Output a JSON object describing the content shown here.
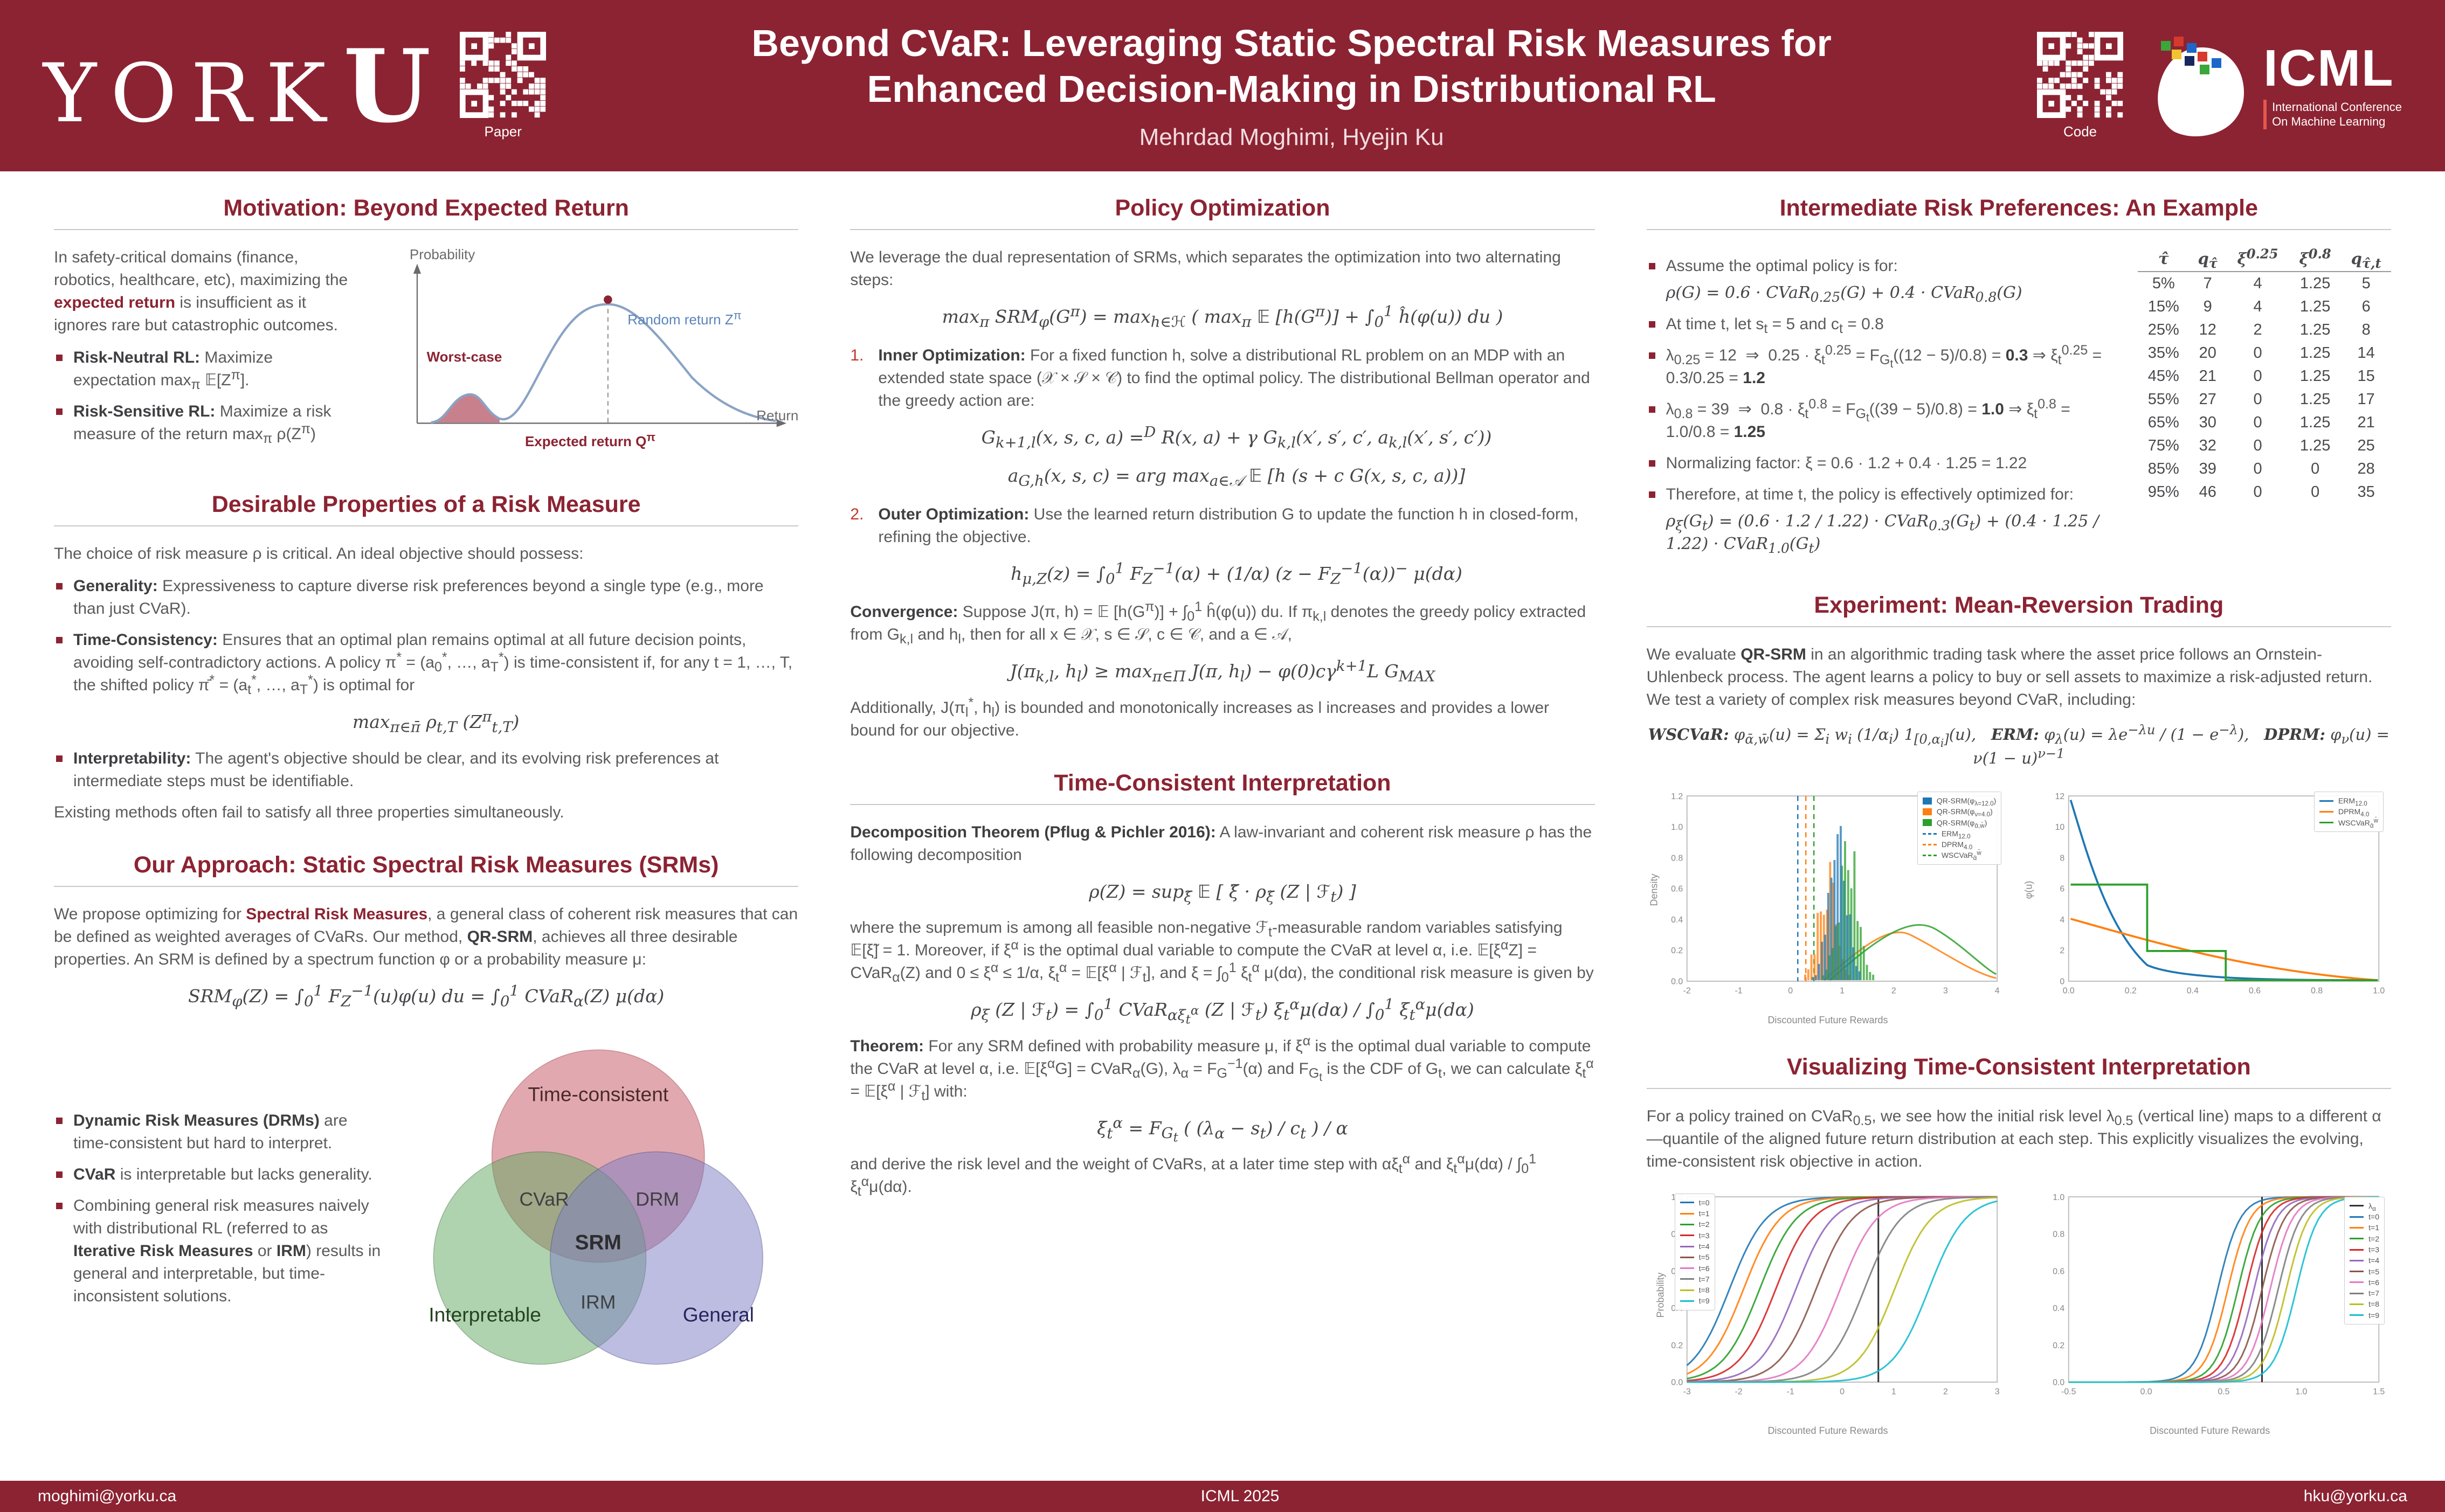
{
  "header": {
    "logo_text": "YORK",
    "logo_u": "U",
    "qr_paper_label": "Paper",
    "qr_code_label": "Code",
    "title_line1": "Beyond CVaR: Leveraging Static Spectral Risk Measures for",
    "title_line2": "Enhanced Decision-Making in Distributional RL",
    "authors": "Mehrdad Moghimi, Hyejin Ku",
    "icml_name": "ICML",
    "icml_sub_html": "International Conference<br>On Machine Learning"
  },
  "footer": {
    "left": "moghimi@yorku.ca",
    "center": "ICML 2025",
    "right": "hku@yorku.ca"
  },
  "motivation": {
    "heading": "Motivation: Beyond Expected Return",
    "intro_html": "In safety-critical domains (finance, robotics, healthcare, etc), maximizing the <span class='hl'>expected return</span> is insufficient as it ignores rare but catastrophic outcomes.",
    "bullets": [
      "<b>Risk-Neutral RL:</b> Maximize expectation max<sub>π</sub> 𝔼[Z<sup>π</sup>].",
      "<b>Risk-Sensitive RL:</b> Maximize a risk measure of the return max<sub>π</sub> ρ(Z<sup>π</sup>)"
    ],
    "figure": {
      "ylabel": "Probability",
      "xlabel": "Return",
      "worst_case": "Worst-case",
      "random_return_html": "Random return Z<sup>π</sup>",
      "expected_return_html": "Expected return Q<sup>π</sup>"
    }
  },
  "properties": {
    "heading": "Desirable Properties of a Risk Measure",
    "intro": "The choice of risk measure ρ is critical. An ideal objective should possess:",
    "bullets": [
      "<b>Generality:</b> Expressiveness to capture diverse risk preferences beyond a single type (e.g., more than just CVaR).",
      "<b>Time-Consistency:</b> Ensures that an optimal plan remains optimal at all future decision points, avoiding self-contradictory actions. A policy π<sup>*</sup> = (a<sub>0</sub><sup>*</sup>, …, a<sub>T</sub><sup>*</sup>) is time-consistent if, for any t = 1, …, T, the shifted policy π̄<sup>*</sup> = (a<sub>t</sub><sup>*</sup>, …, a<sub>T</sub><sup>*</sup>) is optimal for",
      "<b>Interpretability:</b> The agent's objective should be clear, and its evolving risk preferences at intermediate steps must be identifiable."
    ],
    "tc_formula_html": "max<sub>π∈π̄</sub> ρ<sub>t,T</sub> (Z<sup>π</sup><sub>t,T</sub>)",
    "outro": "Existing methods often fail to satisfy all three properties simultaneously."
  },
  "approach": {
    "heading": "Our Approach: Static Spectral Risk Measures (SRMs)",
    "intro_html": "We propose optimizing for <span class='hl'>Spectral Risk Measures</span>, a general class of coherent risk measures that can be defined as weighted averages of CVaRs. Our method, <b>QR-SRM</b>, achieves all three desirable properties. An SRM is defined by a spectrum function φ or a probability measure μ:",
    "formula_html": "SRM<sub>φ</sub>(Z) = ∫<sub>0</sub><sup>1</sup> F<sub>Z</sub><sup>−1</sup>(u)φ(u) du = ∫<sub>0</sub><sup>1</sup> CVaR<sub>α</sub>(Z) μ(dα)",
    "bullets": [
      "<b>Dynamic Risk Measures (DRMs)</b> are time-consistent but hard to interpret.",
      "<b>CVaR</b> is interpretable but lacks generality.",
      "Combining general risk measures naively with distributional RL (referred to as <b>Iterative Risk Measures</b> or <b>IRM</b>) results in general and interpretable, but time-inconsistent solutions."
    ],
    "venn": {
      "top": "Time-consistent",
      "left": "Interpretable",
      "right": "General",
      "top_left": "CVaR",
      "top_right": "DRM",
      "bottom": "IRM",
      "center": "SRM"
    }
  },
  "policy": {
    "heading": "Policy Optimization",
    "intro": "We leverage the dual representation of SRMs, which separates the optimization into two alternating steps:",
    "formula_main_html": "max<sub>π</sub> SRM<sub>φ</sub>(G<sup>π</sup>) = max<sub>h∈ℋ</sub> ( max<sub>π</sub> 𝔼 [h(G<sup>π</sup>)] + ∫<sub>0</sub><sup>1</sup> ĥ(φ(u)) du )",
    "step1_num": "1.",
    "step1_html": "<b>Inner Optimization:</b> For a fixed function h, solve a distributional RL problem on an MDP with an extended state space (𝒳 × 𝒮 × 𝒞) to find the optimal policy. The distributional Bellman operator and the greedy action are:",
    "step1_formula1_html": "G<sub>k+1,l</sub>(x, s, c, a) =<sup>D</sup> R(x, a) + γ G<sub>k,l</sub>(x′, s′, c′, a<sub>k,l</sub>(x′, s′, c′))",
    "step1_formula2_html": "a<sub>G,h</sub>(x, s, c) = arg max<sub>a∈𝒜</sub> 𝔼 [h (s + c G(x, s, c, a))]",
    "step2_num": "2.",
    "step2_html": "<b>Outer Optimization:</b> Use the learned return distribution G to update the function h in closed-form, refining the objective.",
    "step2_formula_html": "h<sub>μ,Z</sub>(z) = ∫<sub>0</sub><sup>1</sup> F<sub>Z</sub><sup>−1</sup>(α) + (1/α) (z − F<sub>Z</sub><sup>−1</sup>(α))<sup>−</sup> μ(dα)",
    "convergence_html": "<b>Convergence:</b> Suppose J(π, h) = 𝔼 [h(G<sup>π</sup>)] + ∫<sub>0</sub><sup>1</sup> ĥ(φ(u)) du. If π<sub>k,l</sub> denotes the greedy policy extracted from G<sub>k,l</sub> and h<sub>l</sub>, then for all x ∈ 𝒳, s ∈ 𝒮, c ∈ 𝒞, and a ∈ 𝒜,",
    "convergence_formula_html": "J(π<sub>k,l</sub>, h<sub>l</sub>) ≥ max<sub>π∈Π</sub> J(π, h<sub>l</sub>) − φ(0)cγ<sup>k+1</sup>L G<sub>MAX</sub>",
    "outro_html": "Additionally, J(π<sub>l</sub><sup>*</sup>, h<sub>l</sub>) is bounded and monotonically increases as l increases and provides a lower bound for our objective."
  },
  "interpretation": {
    "heading": "Time-Consistent Interpretation",
    "decomposition_html": "<b>Decomposition Theorem (Pflug &amp; Pichler 2016):</b> A law-invariant and coherent risk measure ρ has the following decomposition",
    "formula1_html": "ρ(Z) = sup<sub>ξ̃</sub> 𝔼 [ ξ̃ · ρ<sub>ξ̃</sub> (Z | ℱ<sub>t</sub>) ]",
    "body_html": "where the supremum is among all feasible non-negative ℱ<sub>t</sub>-measurable random variables satisfying 𝔼[ξ̃] = 1. Moreover, if ξ<sup>α</sup> is the optimal dual variable to compute the CVaR at level α, i.e. 𝔼[ξ<sup>α</sup>Z] = CVaR<sub>α</sub>(Z) and 0 ≤ ξ<sup>α</sup> ≤ 1/α, ξ<sub>t</sub><sup>α</sup> = 𝔼[ξ<sup>α</sup> | ℱ<sub>t</sub>], and ξ = ∫<sub>0</sub><sup>1</sup> ξ<sub>t</sub><sup>α</sup> μ(dα), the conditional risk measure is given by",
    "formula2_html": "ρ<sub>ξ</sub> (Z | ℱ<sub>t</sub>) = ∫<sub>0</sub><sup>1</sup> CVaR<sub>αξ<sub>t</sub><sup>α</sup></sub> (Z | ℱ<sub>t</sub>) ξ<sub>t</sub><sup>α</sup>μ(dα) / ∫<sub>0</sub><sup>1</sup> ξ<sub>t</sub><sup>α</sup>μ(dα)",
    "theorem_html": "<b>Theorem:</b> For any SRM defined with probability measure μ, if ξ<sup>α</sup> is the optimal dual variable to compute the CVaR at level α, i.e. 𝔼[ξ<sup>α</sup>G] = CVaR<sub>α</sub>(G), λ<sub>α</sub> = F<sub>G</sub><sup>−1</sup>(α) and F<sub>G<sub>t</sub></sub> is the CDF of G<sub>t</sub>, we can calculate ξ<sub>t</sub><sup>α</sup> = 𝔼[ξ<sup>α</sup> | ℱ<sub>t</sub>] with:",
    "formula3_html": "ξ<sub>t</sub><sup>α</sup> = F<sub>G<sub>t</sub></sub> ( (λ<sub>α</sub> − s<sub>t</sub>) / c<sub>t</sub> ) / α",
    "outro_html": "and derive the risk level and the weight of CVaRs, at a later time step with αξ<sub>t</sub><sup>α</sup> and ξ<sub>t</sub><sup>α</sup>μ(dα) / ∫<sub>0</sub><sup>1</sup> ξ<sub>t</sub><sup>α</sup>μ(dα)."
  },
  "example": {
    "heading": "Intermediate Risk Preferences: An Example",
    "bullets": [
      "Assume the optimal policy is for:<span class='bform'>ρ(G) = 0.6 · CVaR<sub>0.25</sub>(G) + 0.4 · CVaR<sub>0.8</sub>(G)</span>",
      "At time t, let s<sub>t</sub> = 5 and c<sub>t</sub> = 0.8",
      "λ<sub>0.25</sub> = 12 &nbsp;⇒&nbsp; 0.25 · ξ<sub>t</sub><sup>0.25</sup> = F<sub>G<sub>t</sub></sub>((12 − 5)/0.8) = <b>0.3</b> ⇒ ξ<sub>t</sub><sup>0.25</sup> = 0.3/0.25 = <b>1.2</b>",
      "λ<sub>0.8</sub> = 39 &nbsp;⇒&nbsp; 0.8 · ξ<sub>t</sub><sup>0.8</sup> = F<sub>G<sub>t</sub></sub>((39 − 5)/0.8) = <b>1.0</b> ⇒ ξ<sub>t</sub><sup>0.8</sup> = 1.0/0.8 = <b>1.25</b>",
      "Normalizing factor: ξ = 0.6 · 1.2 + 0.4 · 1.25 = 1.22",
      "Therefore, at time t, the policy is effectively optimized for:<span class='bform'>ρ<sub>ξ</sub>(G<sub>t</sub>) = (0.6 · 1.2 / 1.22) · CVaR<sub>0.3</sub>(G<sub>t</sub>) + (0.4 · 1.25 / 1.22) · CVaR<sub>1.0</sub>(G<sub>t</sub>)</span>"
    ],
    "table": {
      "headers": [
        "τ̂",
        "q<sub>τ̂</sub>",
        "ξ<sup>0.25</sup>",
        "ξ<sup>0.8</sup>",
        "q<sub>τ̂,t</sub>"
      ],
      "rows": [
        [
          "5%",
          "7",
          "4",
          "1.25",
          "5"
        ],
        [
          "15%",
          "9",
          "4",
          "1.25",
          "6"
        ],
        [
          "25%",
          "12",
          "2",
          "1.25",
          "8"
        ],
        [
          "35%",
          "20",
          "0",
          "1.25",
          "14"
        ],
        [
          "45%",
          "21",
          "0",
          "1.25",
          "15"
        ],
        [
          "55%",
          "27",
          "0",
          "1.25",
          "17"
        ],
        [
          "65%",
          "30",
          "0",
          "1.25",
          "21"
        ],
        [
          "75%",
          "32",
          "0",
          "1.25",
          "25"
        ],
        [
          "85%",
          "39",
          "0",
          "0",
          "28"
        ],
        [
          "95%",
          "46",
          "0",
          "0",
          "35"
        ]
      ]
    }
  },
  "experiment": {
    "heading": "Experiment: Mean-Reversion Trading",
    "intro_html": "We evaluate <b>QR-SRM</b> in an algorithmic trading task where the asset price follows an Ornstein-Uhlenbeck process. The agent learns a policy to buy or sell assets to maximize a risk-adjusted return. We test a variety of complex risk measures beyond CVaR, including:",
    "formulas_html": "<b>WSCVaR:</b> φ<sub>ᾱ,w̄</sub>(u) = Σ<sub>i</sub> w<sub>i</sub> (1/α<sub>i</sub>) 1<sub>[0,α<sub>i</sub>]</sub>(u), &nbsp;&nbsp;<b>ERM:</b> φ<sub>λ</sub>(u) = λe<sup>−λu</sup> / (1 − e<sup>−λ</sup>), &nbsp;&nbsp;<b>DPRM:</b> φ<sub>ν</sub>(u) = ν(1 − u)<sup>ν−1</sup>",
    "left_plot": {
      "xlabel": "Discounted Future Rewards",
      "ylabel": "Density",
      "xticks": [
        "-2",
        "-1",
        "0",
        "1",
        "2",
        "3",
        "4"
      ],
      "yticks": [
        "0.0",
        "0.2",
        "0.4",
        "0.6",
        "0.8",
        "1.0",
        "1.2"
      ],
      "legend": [
        {
          "label": "QR-SRM(φ<sub>λ=12.0</sub>)",
          "color": "#1f77b4",
          "style": "box"
        },
        {
          "label": "QR-SRM(φ<sub>ν=4.0</sub>)",
          "color": "#ff7f0e",
          "style": "box"
        },
        {
          "label": "QR-SRM(φ<sub>ᾱ,w̄</sub>)",
          "color": "#2ca02c",
          "style": "box"
        },
        {
          "label": "ERM<sub>12.0</sub>",
          "color": "#1f77b4",
          "style": "dash"
        },
        {
          "label": "DPRM<sub>4.0</sub>",
          "color": "#ff7f0e",
          "style": "dash"
        },
        {
          "label": "WSCVaR<sub>ᾱ</sub><sup>w̄</sup>",
          "color": "#2ca02c",
          "style": "dash"
        }
      ]
    },
    "right_plot": {
      "ylabel": "φ(u)",
      "xticks": [
        "0.0",
        "0.2",
        "0.4",
        "0.6",
        "0.8",
        "1.0"
      ],
      "yticks": [
        "0",
        "2",
        "4",
        "6",
        "8",
        "10",
        "12"
      ],
      "legend": [
        {
          "label": "ERM<sub>12.0</sub>",
          "color": "#1f77b4",
          "style": "line"
        },
        {
          "label": "DPRM<sub>4.0</sub>",
          "color": "#ff7f0e",
          "style": "line"
        },
        {
          "label": "WSCVaR<sub>ᾱ</sub><sup>w̄</sup>",
          "color": "#2ca02c",
          "style": "line"
        }
      ]
    }
  },
  "viz": {
    "heading": "Visualizing Time-Consistent Interpretation",
    "intro_html": "For a policy trained on CVaR<sub>0.5</sub>, we see how the initial risk level λ<sub>0.5</sub> (vertical line) maps to a different α—quantile of the aligned future return distribution at each step. This explicitly visualizes the evolving, time-consistent risk objective in action.",
    "xlabel": "Discounted Future Rewards",
    "ylabel": "Probability",
    "left_plot": {
      "xticks": [
        "-3",
        "-2",
        "-1",
        "0",
        "1",
        "2",
        "3"
      ],
      "yticks": [
        "0.0",
        "0.2",
        "0.4",
        "0.6",
        "0.8",
        "1.0"
      ],
      "legend": [
        {
          "label": "t=0",
          "color": "#1f77b4",
          "style": "line"
        },
        {
          "label": "t=1",
          "color": "#ff7f0e",
          "style": "line"
        },
        {
          "label": "t=2",
          "color": "#2ca02c",
          "style": "line"
        },
        {
          "label": "t=3",
          "color": "#d62728",
          "style": "line"
        },
        {
          "label": "t=4",
          "color": "#9467bd",
          "style": "line"
        },
        {
          "label": "t=5",
          "color": "#8c564b",
          "style": "line"
        },
        {
          "label": "t=6",
          "color": "#e377c2",
          "style": "line"
        },
        {
          "label": "t=7",
          "color": "#7f7f7f",
          "style": "line"
        },
        {
          "label": "t=8",
          "color": "#bcbd22",
          "style": "line"
        },
        {
          "label": "t=9",
          "color": "#17becf",
          "style": "line"
        }
      ]
    },
    "right_plot": {
      "xticks": [
        "-0.5",
        "0.0",
        "0.5",
        "1.0",
        "1.5"
      ],
      "yticks": [
        "0.0",
        "0.2",
        "0.4",
        "0.6",
        "0.8",
        "1.0"
      ],
      "legend": [
        {
          "label": "λ<sub>α</sub>",
          "color": "#333333",
          "style": "line"
        },
        {
          "label": "t=0",
          "color": "#1f77b4",
          "style": "line"
        },
        {
          "label": "t=1",
          "color": "#ff7f0e",
          "style": "line"
        },
        {
          "label": "t=2",
          "color": "#2ca02c",
          "style": "line"
        },
        {
          "label": "t=3",
          "color": "#d62728",
          "style": "line"
        },
        {
          "label": "t=4",
          "color": "#9467bd",
          "style": "line"
        },
        {
          "label": "t=5",
          "color": "#8c564b",
          "style": "line"
        },
        {
          "label": "t=6",
          "color": "#e377c2",
          "style": "line"
        },
        {
          "label": "t=7",
          "color": "#7f7f7f",
          "style": "line"
        },
        {
          "label": "t=8",
          "color": "#bcbd22",
          "style": "line"
        },
        {
          "label": "t=9",
          "color": "#17becf",
          "style": "line"
        }
      ]
    },
    "series_colors": [
      "#1f77b4",
      "#ff7f0e",
      "#2ca02c",
      "#d62728",
      "#9467bd",
      "#8c564b",
      "#e377c2",
      "#7f7f7f",
      "#bcbd22",
      "#17becf"
    ]
  }
}
